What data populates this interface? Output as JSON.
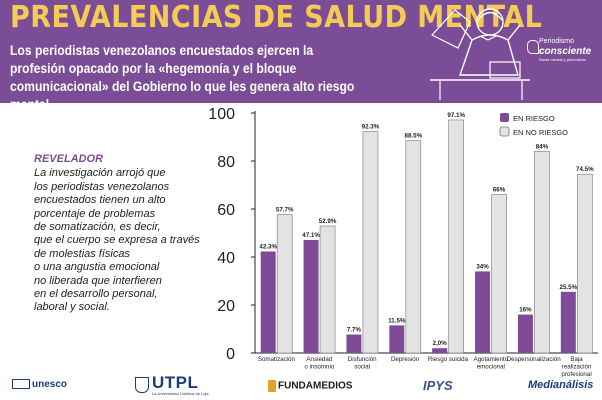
{
  "header": {
    "title": "PREVALENCIAS DE SALUD MENTAL",
    "subtitle": "Los periodistas venezolanos encuestados ejercen la profesión opacado por la «hegemonía y el bloque comunicacional» del Gobierno lo que les genera alto riesgo mental",
    "brand_line1": "Periodismo",
    "brand_line2": "consciente",
    "brand_line3": "Salud mental y periodismo"
  },
  "sidebar": {
    "kicker": "REVELADOR",
    "body": "La investigación arrojó que\nlos periodistas venezolanos\nencuestados  tienen un alto\nporcentaje de problemas\nde somatización, es decir,\nque el cuerpo se expresa a través\nde molestias físicas\no una angustia emocional\nno liberada que interfieren\nen el desarrollo personal,\nlaboral y social."
  },
  "chart_data": {
    "type": "bar",
    "title": "",
    "xlabel": "",
    "ylabel": "",
    "ylim": [
      0,
      100
    ],
    "yticks": [
      0,
      20,
      40,
      60,
      80,
      100
    ],
    "categories": [
      "Somatización",
      "Ansiedad\no insomnio",
      "Disfunción\nsocial",
      "Depresión",
      "Riesgo suicida",
      "Agotamiento\nemocional",
      "Despersonalización",
      "Baja\nrealización\nprofesional"
    ],
    "legend_position": "top-right",
    "series": [
      {
        "name": "EN RIESGO",
        "color": "#7d4b97",
        "values": [
          42.3,
          47.1,
          7.7,
          11.5,
          2.0,
          34,
          16,
          25.5
        ],
        "labels": [
          "42.3%",
          "47.1%",
          "7.7%",
          "11.5%",
          "2,0%",
          "34%",
          "16%",
          "25.5%"
        ]
      },
      {
        "name": "EN NO RIESGO",
        "color": "#e3e3e3",
        "values": [
          57.7,
          52.9,
          92.3,
          88.5,
          97.1,
          66,
          84,
          74.5
        ],
        "labels": [
          "57.7%",
          "52.9%",
          "92.3%",
          "88.5%",
          "97.1%",
          "66%",
          "84%",
          "74.5%"
        ]
      }
    ]
  },
  "footer": {
    "logos": [
      "unesco",
      "UTPL",
      "FUNDAMEDIOS",
      "IPYS",
      "Medianálisis"
    ],
    "utpl_sub": "La Universidad Católica de Loja"
  }
}
